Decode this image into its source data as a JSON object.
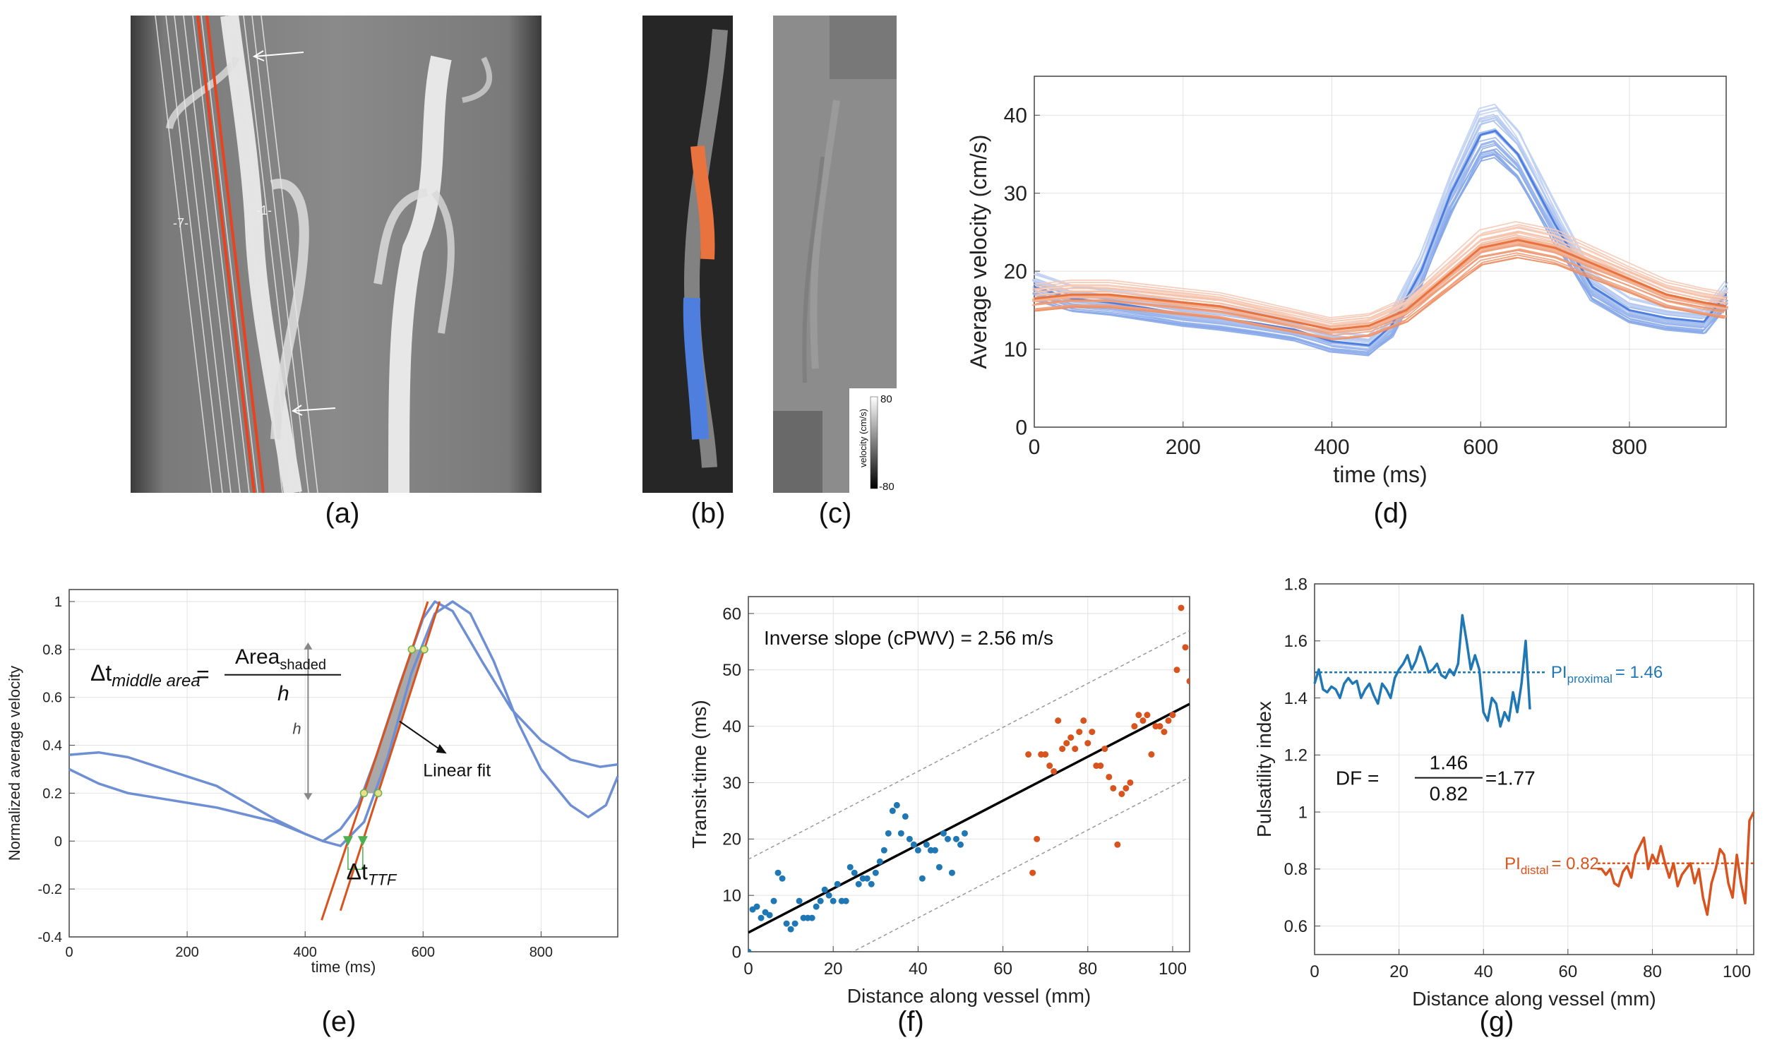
{
  "panel_labels": {
    "a": "(a)",
    "b": "(b)",
    "c": "(c)",
    "d": "(d)",
    "e": "(e)",
    "f": "(f)",
    "g": "(g)"
  },
  "image_a": {
    "vessel_labels": {
      "left": "-7-",
      "right": "-1-"
    }
  },
  "image_c": {
    "colorbar_label": "velocity (cm/s)",
    "colorbar_max": "80",
    "colorbar_min": "-80"
  },
  "colors": {
    "blue": "#4f7fde",
    "orange": "#e8733e",
    "dark_blue": "#1f77b4",
    "dark_orange": "#d9531e",
    "fit": "#000000"
  },
  "chart_data": [
    {
      "id": "d",
      "type": "line",
      "xlabel": "time (ms)",
      "ylabel": "Average velocity (cm/s)",
      "xlim": [
        0,
        930
      ],
      "ylim": [
        0,
        45
      ],
      "xticks": [
        0,
        200,
        400,
        600,
        800
      ],
      "yticks": [
        0,
        10,
        20,
        30,
        40
      ],
      "series": [
        {
          "name": "proximal",
          "color": "#4f7fde",
          "x": [
            0,
            50,
            100,
            150,
            200,
            250,
            300,
            350,
            400,
            450,
            480,
            520,
            560,
            600,
            620,
            650,
            700,
            750,
            800,
            850,
            900,
            930
          ],
          "y": [
            18,
            16.5,
            16,
            15.3,
            14.5,
            14,
            13.3,
            12.5,
            11,
            10.5,
            13,
            20,
            30,
            37.5,
            38,
            35,
            26,
            18,
            15,
            14,
            13.5,
            17
          ]
        },
        {
          "name": "distal",
          "color": "#e8733e",
          "x": [
            0,
            50,
            100,
            150,
            200,
            250,
            300,
            350,
            400,
            450,
            500,
            550,
            600,
            650,
            700,
            750,
            800,
            850,
            900,
            930
          ],
          "y": [
            16.5,
            17,
            17,
            16.5,
            16,
            15.5,
            14.5,
            13.5,
            12.5,
            13,
            15,
            19,
            23,
            24,
            23,
            21,
            19,
            17,
            16,
            15.5
          ]
        }
      ]
    },
    {
      "id": "e",
      "type": "line",
      "xlabel": "time (ms)",
      "ylabel": "Normalized average velocity",
      "xlim": [
        0,
        930
      ],
      "ylim": [
        -0.4,
        1.05
      ],
      "xticks": [
        0,
        200,
        400,
        600,
        800
      ],
      "yticks": [
        -0.4,
        -0.2,
        0,
        0.2,
        0.4,
        0.6,
        0.8,
        1
      ],
      "series": [
        {
          "name": "curve_1",
          "color": "#6e8fd4",
          "x": [
            0,
            50,
            100,
            150,
            200,
            250,
            300,
            350,
            400,
            430,
            460,
            490,
            520,
            560,
            600,
            620,
            650,
            700,
            750,
            800,
            850,
            900,
            930
          ],
          "y": [
            0.36,
            0.37,
            0.35,
            0.31,
            0.27,
            0.23,
            0.16,
            0.09,
            0.03,
            0.0,
            0.05,
            0.15,
            0.35,
            0.65,
            0.93,
            1.0,
            0.96,
            0.75,
            0.55,
            0.42,
            0.34,
            0.31,
            0.32
          ]
        },
        {
          "name": "curve_2",
          "color": "#6e8fd4",
          "x": [
            0,
            50,
            100,
            150,
            200,
            250,
            300,
            350,
            400,
            430,
            460,
            500,
            540,
            580,
            620,
            650,
            680,
            720,
            760,
            800,
            850,
            880,
            910,
            930
          ],
          "y": [
            0.3,
            0.24,
            0.2,
            0.18,
            0.16,
            0.14,
            0.11,
            0.08,
            0.03,
            0.0,
            -0.02,
            0.08,
            0.35,
            0.7,
            0.95,
            1.0,
            0.95,
            0.75,
            0.5,
            0.3,
            0.15,
            0.1,
            0.15,
            0.27
          ]
        }
      ],
      "fit_lines": [
        {
          "color": "#d9531e",
          "x": [
            428,
            608
          ],
          "y": [
            -0.33,
            1.0
          ]
        },
        {
          "color": "#d9531e",
          "x": [
            460,
            628
          ],
          "y": [
            -0.29,
            1.0
          ]
        }
      ],
      "formula": {
        "lhs": "Δt",
        "lhs_sub": "middle area",
        "equals": "=",
        "num": "Area",
        "num_sub": "shaded",
        "den": "h"
      },
      "annotations": {
        "h": "h",
        "linear_fit": "Linear fit",
        "dt": "Δt",
        "dt_sub": "TTF"
      }
    },
    {
      "id": "f",
      "type": "scatter",
      "xlabel": "Distance along vessel (mm)",
      "ylabel": "Transit-time (ms)",
      "xlim": [
        0,
        104
      ],
      "ylim": [
        0,
        63
      ],
      "xticks": [
        0,
        20,
        40,
        60,
        80,
        100
      ],
      "yticks": [
        0,
        10,
        20,
        30,
        40,
        50,
        60
      ],
      "annotation": "Inverse slope (cPWV) = 2.56 m/s",
      "fit": {
        "slope": 0.39,
        "intercept": 3.4,
        "band": 13
      },
      "series": [
        {
          "name": "proximal",
          "color": "#1f77b4",
          "x": [
            0,
            1,
            2,
            3,
            4,
            5,
            6,
            7,
            8,
            9,
            10,
            11,
            12,
            13,
            14,
            15,
            16,
            17,
            18,
            19,
            20,
            21,
            22,
            23,
            24,
            25,
            26,
            27,
            28,
            29,
            30,
            31,
            32,
            33,
            34,
            35,
            36,
            37,
            38,
            39,
            40,
            41,
            42,
            43,
            44,
            45,
            46,
            47,
            48,
            49,
            50,
            51
          ],
          "y": [
            0,
            7.5,
            8,
            6,
            7,
            6.5,
            9,
            14,
            13,
            5,
            4,
            5,
            9,
            6,
            6,
            6,
            8,
            9,
            11,
            10,
            9,
            12,
            9,
            9,
            15,
            14,
            12,
            13,
            13,
            12,
            14,
            16,
            18,
            21,
            25,
            26,
            21,
            24,
            20,
            19,
            18,
            13,
            19,
            18,
            18,
            15,
            21,
            20,
            14,
            20,
            19,
            21
          ]
        },
        {
          "name": "distal",
          "color": "#d9531e",
          "x": [
            66,
            67,
            68,
            69,
            70,
            71,
            72,
            73,
            74,
            75,
            76,
            77,
            78,
            79,
            80,
            81,
            82,
            83,
            84,
            85,
            86,
            87,
            88,
            89,
            90,
            91,
            92,
            93,
            94,
            95,
            96,
            97,
            98,
            99,
            100,
            101,
            102,
            103,
            104
          ],
          "y": [
            35,
            14,
            20,
            35,
            35,
            33,
            32,
            41,
            36,
            37,
            38,
            36,
            39,
            41,
            37,
            39,
            33,
            33,
            36,
            31,
            29,
            19,
            28,
            29,
            30,
            40,
            42,
            41,
            42,
            35,
            40,
            40,
            39,
            41,
            42,
            50,
            61,
            54,
            48
          ]
        }
      ]
    },
    {
      "id": "g",
      "type": "line",
      "xlabel": "Distance along vessel (mm)",
      "ylabel": "Pulsatility index",
      "xlim": [
        0,
        104
      ],
      "ylim": [
        0.5,
        1.8
      ],
      "xticks": [
        0,
        20,
        40,
        60,
        80,
        100
      ],
      "yticks": [
        0.6,
        0.8,
        1,
        1.2,
        1.4,
        1.6,
        1.8
      ],
      "pi_proximal": {
        "label": "PI",
        "sub": "proximal",
        "value": "= 1.46",
        "y": 1.49
      },
      "pi_distal": {
        "label": "PI",
        "sub": "distal",
        "value": "= 0.82",
        "y": 0.82
      },
      "df": {
        "label": "DF =",
        "num": "1.46",
        "den": "0.82",
        "result": "=1.77"
      },
      "series": [
        {
          "name": "proximal",
          "color": "#1f77b4",
          "x": [
            0,
            1,
            2,
            3,
            4,
            5,
            6,
            7,
            8,
            9,
            10,
            11,
            12,
            13,
            14,
            15,
            16,
            17,
            18,
            19,
            20,
            21,
            22,
            23,
            24,
            25,
            26,
            27,
            28,
            29,
            30,
            31,
            32,
            33,
            34,
            35,
            36,
            37,
            38,
            39,
            40,
            41,
            42,
            43,
            44,
            45,
            46,
            47,
            48,
            49,
            50,
            51
          ],
          "y": [
            1.45,
            1.5,
            1.43,
            1.42,
            1.44,
            1.43,
            1.4,
            1.45,
            1.47,
            1.45,
            1.46,
            1.4,
            1.43,
            1.45,
            1.41,
            1.38,
            1.45,
            1.43,
            1.4,
            1.47,
            1.5,
            1.52,
            1.55,
            1.5,
            1.53,
            1.58,
            1.54,
            1.49,
            1.5,
            1.52,
            1.48,
            1.47,
            1.5,
            1.48,
            1.52,
            1.69,
            1.6,
            1.5,
            1.55,
            1.5,
            1.35,
            1.32,
            1.4,
            1.38,
            1.3,
            1.35,
            1.32,
            1.42,
            1.35,
            1.45,
            1.6,
            1.36
          ]
        },
        {
          "name": "distal",
          "color": "#d9531e",
          "x": [
            67,
            68,
            69,
            70,
            71,
            72,
            73,
            74,
            75,
            76,
            77,
            78,
            79,
            80,
            81,
            82,
            83,
            84,
            85,
            86,
            87,
            88,
            89,
            90,
            91,
            92,
            93,
            94,
            95,
            96,
            97,
            98,
            99,
            100,
            101,
            102,
            103,
            104
          ],
          "y": [
            0.8,
            0.8,
            0.78,
            0.8,
            0.75,
            0.74,
            0.79,
            0.81,
            0.77,
            0.85,
            0.88,
            0.91,
            0.8,
            0.85,
            0.82,
            0.88,
            0.82,
            0.77,
            0.82,
            0.74,
            0.78,
            0.8,
            0.82,
            0.75,
            0.8,
            0.7,
            0.64,
            0.75,
            0.8,
            0.87,
            0.85,
            0.75,
            0.7,
            0.85,
            0.75,
            0.68,
            0.97,
            1.0
          ]
        }
      ]
    }
  ]
}
